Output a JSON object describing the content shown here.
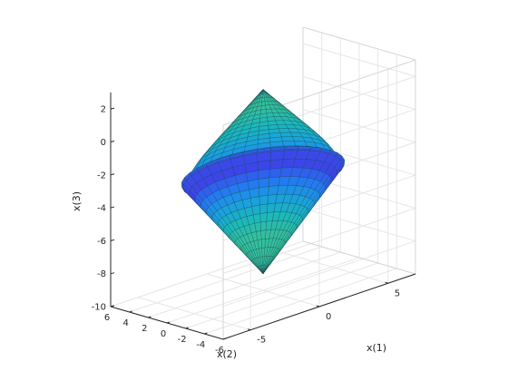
{
  "chart_data": {
    "type": "surface",
    "surface": "double-cone",
    "colormap": "parula",
    "grid": true,
    "axes": {
      "x1": {
        "label": "x(1)",
        "lim": [
          -7,
          7
        ],
        "ticks": [
          -5,
          0,
          5
        ],
        "tick_labels": [
          "-5",
          "0",
          "5"
        ]
      },
      "x2": {
        "label": "x(2)",
        "lim": [
          -6,
          6
        ],
        "ticks": [
          6,
          4,
          2,
          0,
          -2,
          -4,
          -6
        ],
        "tick_labels": [
          "6",
          "4",
          "2",
          "0",
          "-2",
          "-4",
          "-6"
        ]
      },
      "x3": {
        "label": "x(3)",
        "lim": [
          -10,
          3
        ],
        "ticks": [
          2,
          0,
          -2,
          -4,
          -6,
          -8,
          -10
        ],
        "tick_labels": [
          "2",
          "0",
          "-2",
          "-4",
          "-6",
          "-8",
          "-10"
        ]
      }
    },
    "shape": {
      "apex_top": 2.2,
      "apex_bottom": -9.0,
      "rim_height": -2.7,
      "rim_radius": 4.9
    }
  }
}
